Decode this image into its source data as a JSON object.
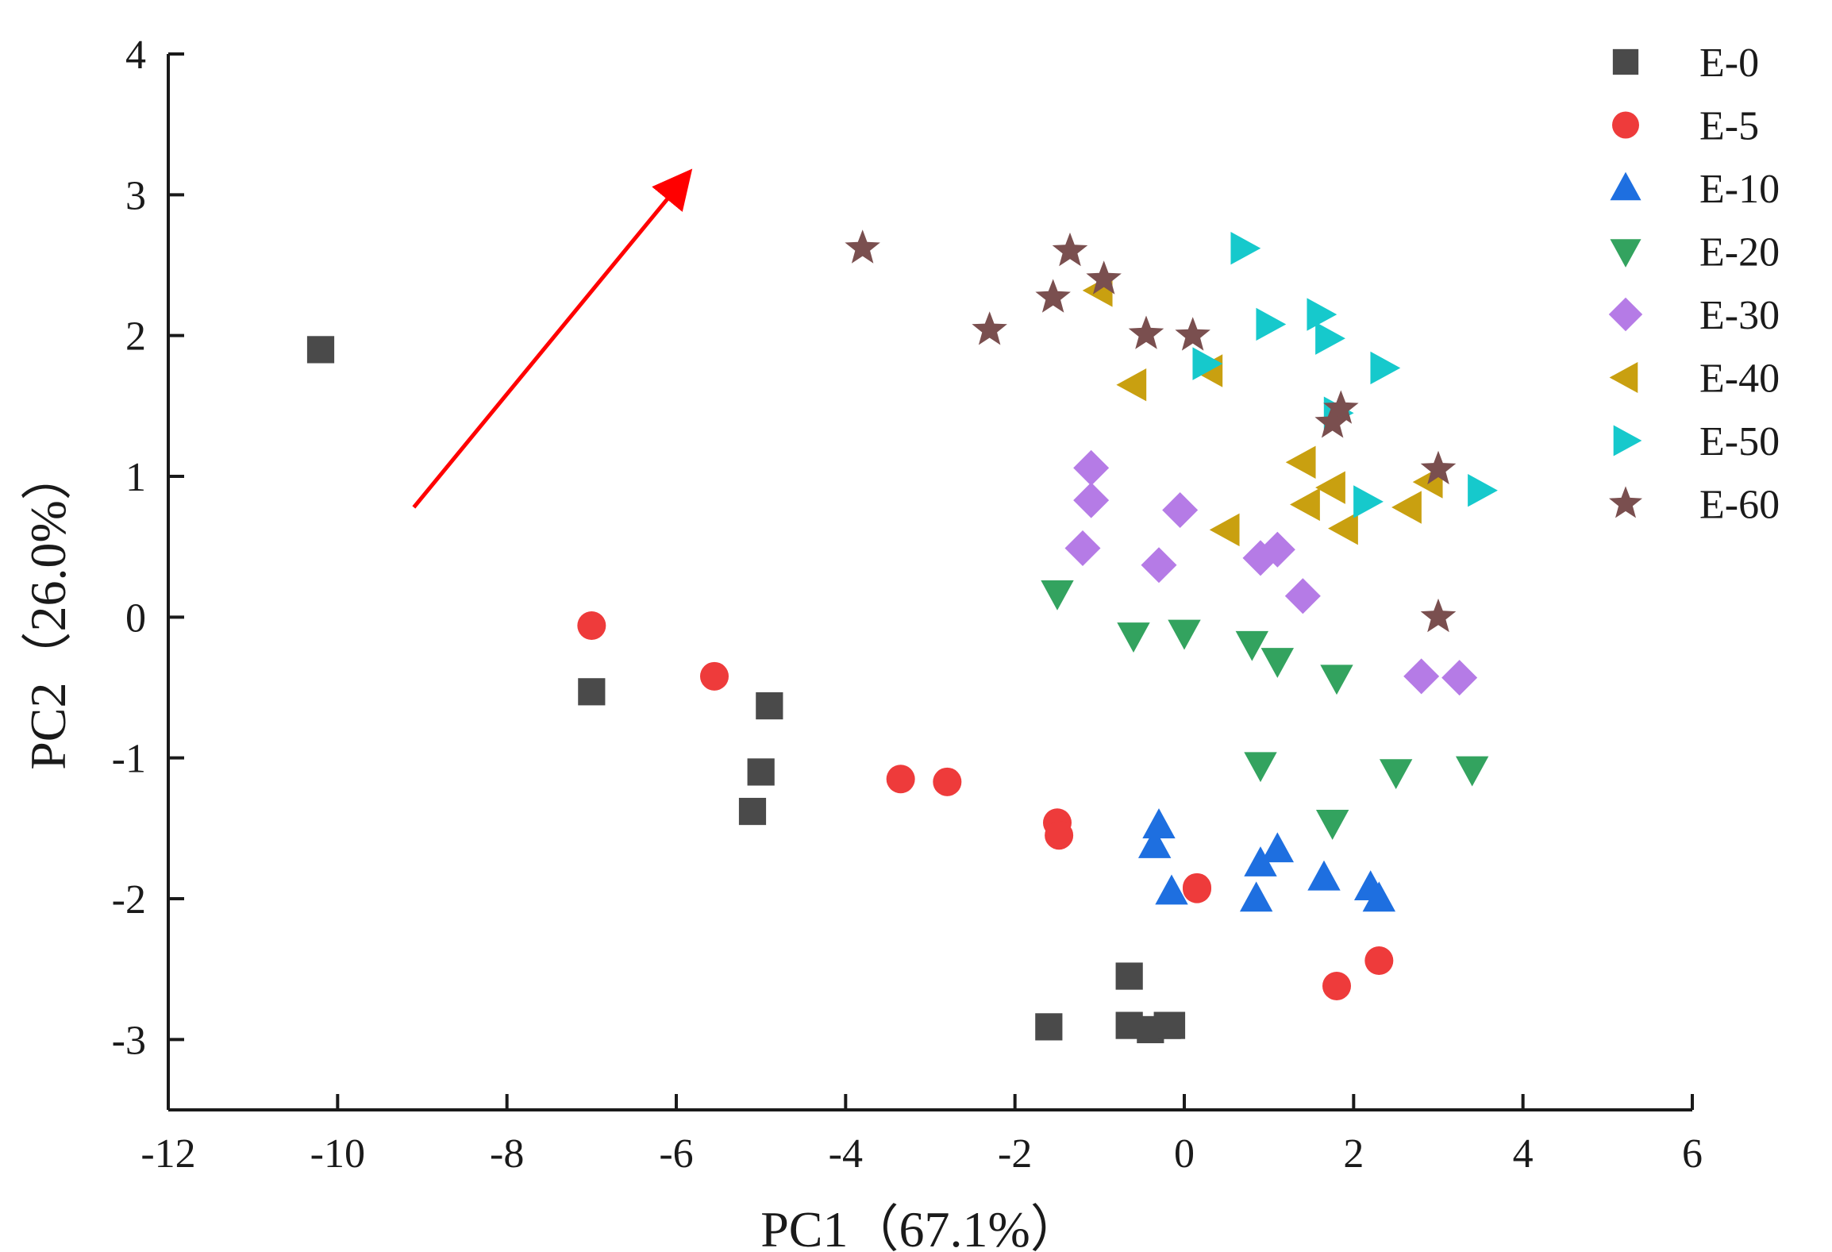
{
  "chart_data": {
    "type": "scatter",
    "xlabel": "PC1（67.1%）",
    "ylabel": "PC2（26.0%）",
    "xlim": [
      -12,
      6
    ],
    "ylim": [
      -3.5,
      4
    ],
    "xticks": [
      -12,
      -10,
      -8,
      -6,
      -4,
      -2,
      0,
      2,
      4,
      6
    ],
    "xtick_labels": [
      "-12",
      "-10",
      "-8",
      "-6",
      "-4",
      "-2",
      "0",
      "2",
      "4",
      "6"
    ],
    "yticks": [
      -3,
      -2,
      -1,
      0,
      1,
      2,
      3,
      4
    ],
    "ytick_labels": [
      "-3",
      "-2",
      "-1",
      "0",
      "1",
      "2",
      "3",
      "4"
    ],
    "grid": false,
    "legend_position": "top-right",
    "arrow": {
      "from": [
        -9.1,
        0.78
      ],
      "to": [
        -5.9,
        3.12
      ],
      "color": "#ff0000"
    },
    "series": [
      {
        "name": "E-0",
        "marker": "square",
        "color": "#4a4a4a",
        "points": [
          [
            -10.2,
            1.9
          ],
          [
            -7.0,
            -0.53
          ],
          [
            -4.9,
            -0.63
          ],
          [
            -5.0,
            -1.1
          ],
          [
            -5.1,
            -1.38
          ],
          [
            -1.6,
            -2.91
          ],
          [
            -0.65,
            -2.55
          ],
          [
            -0.65,
            -2.9
          ],
          [
            -0.4,
            -2.93
          ],
          [
            -0.2,
            -2.9
          ],
          [
            -0.15,
            -2.9
          ]
        ]
      },
      {
        "name": "E-5",
        "marker": "circle",
        "color": "#ee3b3b",
        "points": [
          [
            -7.0,
            -0.06
          ],
          [
            -5.55,
            -0.42
          ],
          [
            -3.35,
            -1.15
          ],
          [
            -2.8,
            -1.17
          ],
          [
            -1.5,
            -1.46
          ],
          [
            -1.48,
            -1.55
          ],
          [
            0.15,
            -1.92
          ],
          [
            0.15,
            -1.93
          ],
          [
            1.8,
            -2.62
          ],
          [
            2.3,
            -2.44
          ]
        ]
      },
      {
        "name": "E-10",
        "marker": "triangle-up",
        "color": "#1e6fe0",
        "points": [
          [
            -0.3,
            -1.48
          ],
          [
            -0.35,
            -1.62
          ],
          [
            -0.15,
            -1.95
          ],
          [
            0.9,
            -1.75
          ],
          [
            0.85,
            -2.0
          ],
          [
            1.1,
            -1.65
          ],
          [
            1.65,
            -1.85
          ],
          [
            2.2,
            -1.92
          ],
          [
            2.3,
            -2.0
          ]
        ]
      },
      {
        "name": "E-20",
        "marker": "triangle-down",
        "color": "#33a35f",
        "points": [
          [
            -1.5,
            0.17
          ],
          [
            -0.6,
            -0.13
          ],
          [
            0.0,
            -0.11
          ],
          [
            0.8,
            -0.19
          ],
          [
            1.1,
            -0.31
          ],
          [
            1.8,
            -0.43
          ],
          [
            0.9,
            -1.05
          ],
          [
            1.75,
            -1.46
          ],
          [
            2.5,
            -1.1
          ],
          [
            3.4,
            -1.08
          ]
        ]
      },
      {
        "name": "E-30",
        "marker": "diamond",
        "color": "#b57be6",
        "points": [
          [
            -1.1,
            1.06
          ],
          [
            -1.1,
            0.83
          ],
          [
            -1.2,
            0.49
          ],
          [
            -0.3,
            0.37
          ],
          [
            -0.05,
            0.76
          ],
          [
            0.9,
            0.42
          ],
          [
            1.1,
            0.48
          ],
          [
            1.4,
            0.15
          ],
          [
            2.8,
            -0.42
          ],
          [
            3.25,
            -0.43
          ]
        ]
      },
      {
        "name": "E-40",
        "marker": "triangle-left",
        "color": "#c9a010",
        "points": [
          [
            -1.0,
            2.32
          ],
          [
            -0.6,
            1.65
          ],
          [
            0.3,
            1.75
          ],
          [
            0.5,
            0.62
          ],
          [
            1.4,
            1.1
          ],
          [
            1.45,
            0.8
          ],
          [
            1.75,
            0.92
          ],
          [
            1.9,
            0.63
          ],
          [
            2.65,
            0.78
          ],
          [
            2.9,
            0.96
          ]
        ]
      },
      {
        "name": "E-50",
        "marker": "triangle-right",
        "color": "#16c9cc",
        "points": [
          [
            0.7,
            2.62
          ],
          [
            1.0,
            2.08
          ],
          [
            1.6,
            2.15
          ],
          [
            1.7,
            1.98
          ],
          [
            0.25,
            1.8
          ],
          [
            2.35,
            1.77
          ],
          [
            1.8,
            1.45
          ],
          [
            2.15,
            0.82
          ],
          [
            3.5,
            0.9
          ]
        ]
      },
      {
        "name": "E-60",
        "marker": "star",
        "color": "#7a4f4f",
        "points": [
          [
            -3.8,
            2.62
          ],
          [
            -1.35,
            2.6
          ],
          [
            -1.55,
            2.27
          ],
          [
            -0.95,
            2.4
          ],
          [
            -2.3,
            2.04
          ],
          [
            -0.45,
            2.01
          ],
          [
            0.1,
            2.0
          ],
          [
            1.85,
            1.48
          ],
          [
            1.75,
            1.38
          ],
          [
            3.0,
            1.05
          ],
          [
            3.0,
            0.0
          ]
        ]
      }
    ]
  }
}
